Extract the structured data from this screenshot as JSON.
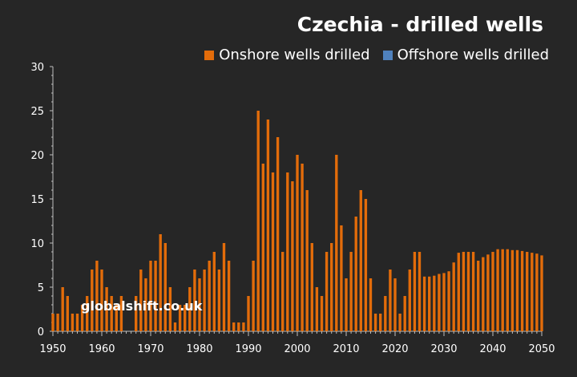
{
  "chart_data": {
    "type": "bar",
    "title": "Czechia - drilled wells",
    "watermark": "globalshift.co.uk",
    "x_start": 1950,
    "x_end": 2050,
    "xlim": [
      1950,
      2050
    ],
    "ylim": [
      0,
      30
    ],
    "x_ticks": [
      "1950",
      "1960",
      "1970",
      "1980",
      "1990",
      "2000",
      "2010",
      "2020",
      "2030",
      "2040",
      "2050"
    ],
    "y_ticks": [
      "0",
      "5",
      "10",
      "15",
      "20",
      "25",
      "30"
    ],
    "legend_position": "top-right",
    "grid": false,
    "series": [
      {
        "name": "Onshore wells drilled",
        "color": "#e36c0a",
        "values": [
          2,
          2,
          5,
          4,
          2,
          2,
          3,
          4,
          7,
          8,
          7,
          5,
          4,
          3,
          4,
          0,
          0,
          4,
          7,
          6,
          8,
          8,
          11,
          10,
          5,
          1,
          3,
          3,
          5,
          7,
          6,
          7,
          8,
          9,
          7,
          10,
          8,
          1,
          1,
          1,
          4,
          8,
          25,
          19,
          24,
          18,
          22,
          9,
          18,
          17,
          20,
          19,
          16,
          10,
          5,
          4,
          9,
          10,
          20,
          12,
          6,
          9,
          13,
          16,
          15,
          6,
          2,
          2,
          4,
          7,
          6,
          2,
          4,
          7,
          9,
          9,
          6.2,
          6.2,
          6.3,
          6.5,
          6.6,
          6.8,
          7.8,
          8.9,
          9,
          9,
          9,
          8,
          8.4,
          8.7,
          9,
          9.3,
          9.3,
          9.3,
          9.2,
          9.2,
          9.1,
          9,
          8.9,
          8.8,
          8.6
        ]
      },
      {
        "name": "Offshore wells drilled",
        "color": "#4f81bd",
        "values": []
      }
    ]
  }
}
